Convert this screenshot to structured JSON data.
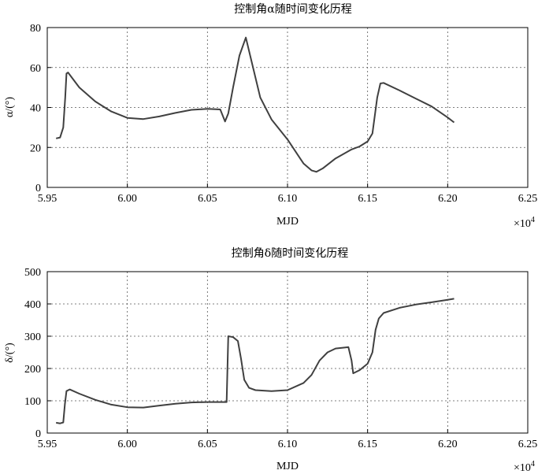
{
  "chart_data": [
    {
      "type": "line",
      "title": "控制角α随时间变化历程",
      "xlabel": "MJD",
      "ylabel": "α/(°)",
      "exponent_label": "×10",
      "exponent_power": "4",
      "xlim": [
        5.95,
        6.25
      ],
      "ylim": [
        0,
        80
      ],
      "xticks": [
        "5.95",
        "6.00",
        "6.05",
        "6.10",
        "6.15",
        "6.20",
        "6.25"
      ],
      "yticks": [
        "0",
        "20",
        "40",
        "60",
        "80"
      ],
      "grid": true,
      "series": [
        {
          "color": "#404040",
          "x": [
            5.9555,
            5.958,
            5.96,
            5.9612,
            5.962,
            5.963,
            5.97,
            5.98,
            5.99,
            6.0,
            6.01,
            6.02,
            6.03,
            6.04,
            6.05,
            6.058,
            6.061,
            6.063,
            6.066,
            6.07,
            6.074,
            6.077,
            6.083,
            6.09,
            6.1,
            6.11,
            6.115,
            6.118,
            6.122,
            6.13,
            6.14,
            6.145,
            6.15,
            6.153,
            6.156,
            6.158,
            6.16,
            6.17,
            6.18,
            6.19,
            6.2,
            6.204
          ],
          "y": [
            24.5,
            25,
            30,
            45,
            57,
            57.5,
            50,
            43,
            38,
            34.8,
            34.2,
            35.5,
            37.3,
            38.8,
            39.3,
            39,
            33,
            37,
            50,
            66,
            75,
            65,
            45,
            34,
            24,
            12,
            8.5,
            7.8,
            9.5,
            14.5,
            19,
            20.5,
            23,
            27,
            45,
            52,
            52.3,
            48.5,
            44.5,
            40.5,
            35,
            32.5
          ]
        }
      ]
    },
    {
      "type": "line",
      "title": "控制角δ随时间变化历程",
      "xlabel": "MJD",
      "ylabel": "δ/(°)",
      "exponent_label": "×10",
      "exponent_power": "4",
      "xlim": [
        5.95,
        6.25
      ],
      "ylim": [
        0,
        500
      ],
      "xticks": [
        "5.95",
        "6.00",
        "6.05",
        "6.10",
        "6.15",
        "6.20",
        "6.25"
      ],
      "yticks": [
        "0",
        "100",
        "200",
        "300",
        "400",
        "500"
      ],
      "grid": true,
      "series": [
        {
          "color": "#404040",
          "x": [
            5.9555,
            5.958,
            5.96,
            5.961,
            5.962,
            5.964,
            5.97,
            5.98,
            5.99,
            6.0,
            6.01,
            6.02,
            6.03,
            6.04,
            6.05,
            6.058,
            6.062,
            6.063,
            6.066,
            6.069,
            6.071,
            6.073,
            6.076,
            6.08,
            6.09,
            6.1,
            6.11,
            6.115,
            6.12,
            6.125,
            6.13,
            6.138,
            6.14,
            6.141,
            6.145,
            6.15,
            6.153,
            6.155,
            6.157,
            6.16,
            6.17,
            6.18,
            6.19,
            6.2,
            6.204
          ],
          "y": [
            32,
            30,
            33,
            90,
            130,
            135,
            122,
            103,
            88,
            80,
            79,
            85,
            91,
            95,
            96,
            96,
            96,
            300,
            297,
            285,
            230,
            165,
            140,
            133,
            130,
            133,
            155,
            180,
            225,
            250,
            262,
            266,
            225,
            185,
            195,
            215,
            250,
            320,
            355,
            372,
            388,
            398,
            405,
            413,
            416
          ]
        }
      ]
    }
  ]
}
